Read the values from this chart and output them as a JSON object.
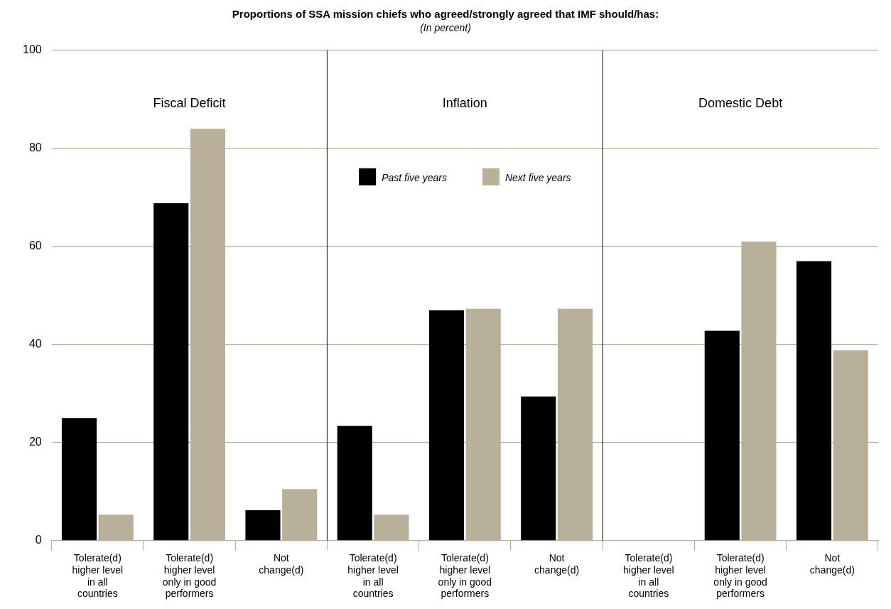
{
  "chart_data": {
    "type": "bar",
    "title": "Proportions of SSA mission chiefs who agreed/strongly agreed that IMF should/has:",
    "subtitle": "(In percent)",
    "categories": [
      "Tolerate(d) higher level in all countries",
      "Tolerate(d) higher level only in good performers",
      "Not change(d)",
      "Tolerate(d) higher level in all countries",
      "Tolerate(d) higher level only in good performers",
      "Not change(d)",
      "Tolerate(d) higher level in all countries",
      "Tolerate(d) higher level only in good performers",
      "Not change(d)"
    ],
    "series": [
      {
        "name": "Past five years",
        "color": "#000000",
        "values": [
          25.0,
          68.8,
          6.2,
          23.4,
          47.0,
          29.4,
          0,
          42.8,
          57.0
        ]
      },
      {
        "name": "Next five years",
        "color": "#b8b098",
        "values": [
          5.3,
          84.0,
          10.5,
          5.3,
          47.3,
          47.3,
          0,
          61.0,
          38.8
        ]
      }
    ],
    "annotations": [
      "Fiscal Deficit",
      "Inflation",
      "Domestic Debt"
    ],
    "ylim": [
      0,
      100
    ],
    "yticks": [
      0,
      20,
      40,
      60,
      80,
      100
    ],
    "grid": "y",
    "legend": "top"
  }
}
